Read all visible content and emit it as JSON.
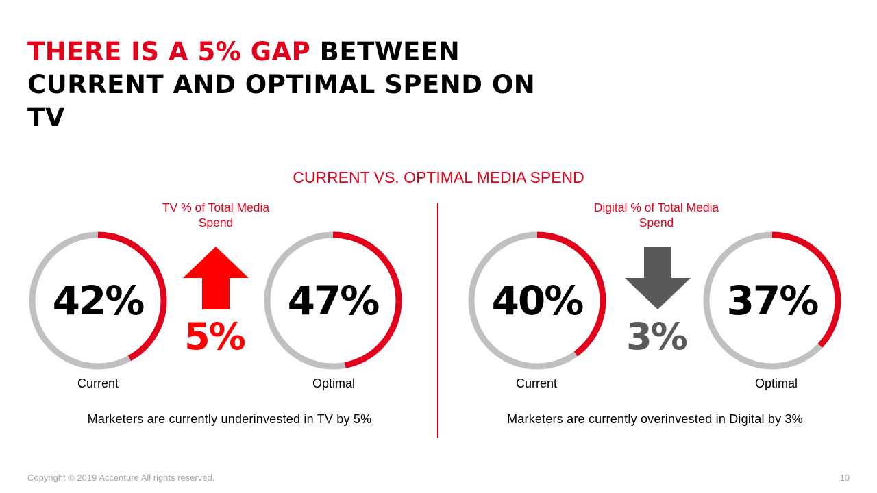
{
  "headline": {
    "accent": "THERE IS A 5% GAP",
    "rest": " BETWEEN CURRENT AND OPTIMAL SPEND ON TV"
  },
  "colors": {
    "accent": "#e3001b",
    "track": "#c0c0c0",
    "down_arrow": "#595959"
  },
  "chart_data": [
    {
      "type": "pie",
      "title": "CURRENT VS. OPTIMAL MEDIA SPEND",
      "metric": "TV % of Total Media Spend",
      "categories": [
        "Current",
        "Optimal"
      ],
      "values": [
        42,
        47
      ],
      "value_labels": [
        "42%",
        "47%"
      ],
      "change": {
        "direction": "up",
        "label": "5%",
        "icon": "arrow-up-icon"
      },
      "note": "Marketers are currently underinvested in TV by 5%"
    },
    {
      "type": "pie",
      "title": "CURRENT VS. OPTIMAL MEDIA SPEND",
      "metric": "Digital % of Total Media Spend",
      "categories": [
        "Current",
        "Optimal"
      ],
      "values": [
        40,
        37
      ],
      "value_labels": [
        "40%",
        "37%"
      ],
      "change": {
        "direction": "down",
        "label": "3%",
        "icon": "arrow-down-icon"
      },
      "note": "Marketers are currently overinvested in Digital by 3%"
    }
  ],
  "subtitle": "CURRENT VS. OPTIMAL MEDIA SPEND",
  "footer": {
    "copyright": "Copyright © 2019 Accenture All rights reserved.",
    "page_number": "10"
  }
}
